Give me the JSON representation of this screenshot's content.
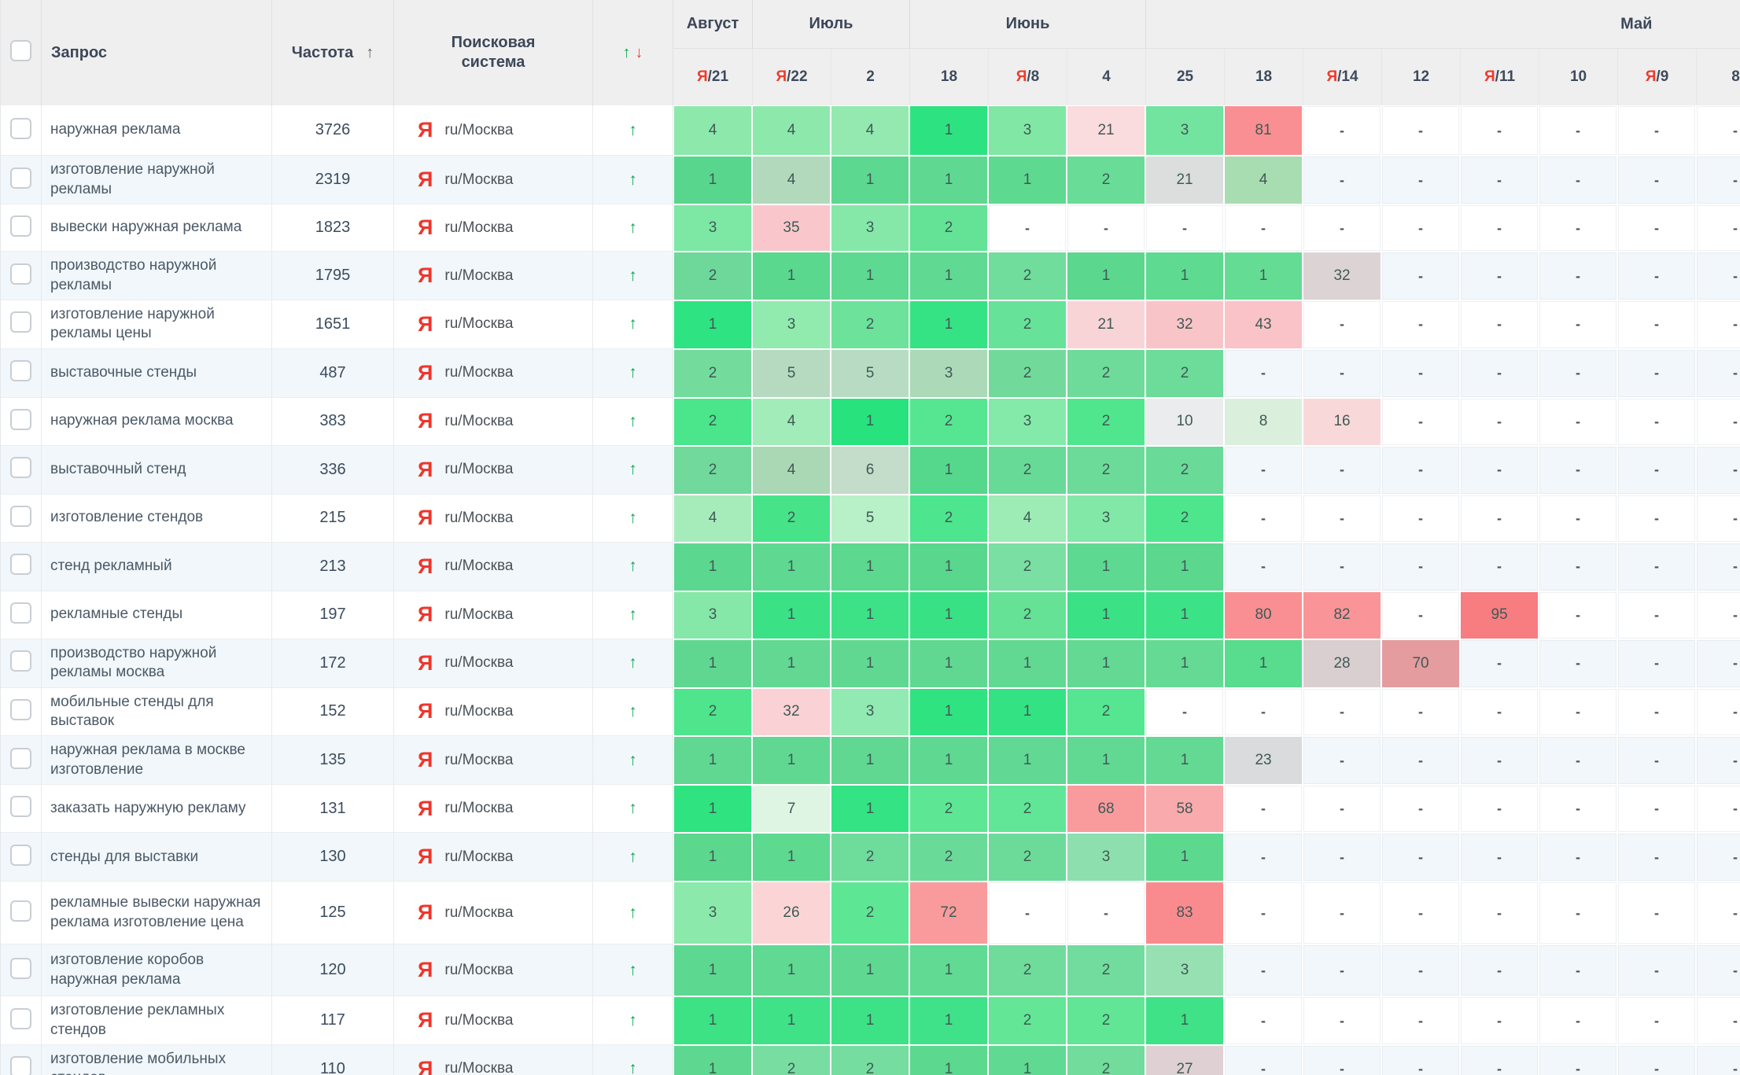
{
  "header": {
    "query": "Запрос",
    "frequency": "Частота",
    "freq_sort_icon": "↑",
    "engine": "Поисковая система",
    "trend_up": "↑",
    "trend_down": "↓",
    "ya_marker": "Я",
    "separator": "/",
    "months": [
      {
        "label": "Август",
        "span": 1
      },
      {
        "label": "Июль",
        "span": 2
      },
      {
        "label": "Июнь",
        "span": 3
      },
      {
        "label": "Май",
        "span": 8
      }
    ],
    "dates": [
      {
        "ya": true,
        "day": "21"
      },
      {
        "ya": true,
        "day": "22"
      },
      {
        "ya": false,
        "day": "2"
      },
      {
        "ya": false,
        "day": "18"
      },
      {
        "ya": true,
        "day": "8"
      },
      {
        "ya": false,
        "day": "4"
      },
      {
        "ya": false,
        "day": "25"
      },
      {
        "ya": false,
        "day": "18"
      },
      {
        "ya": true,
        "day": "14"
      },
      {
        "ya": false,
        "day": "12"
      },
      {
        "ya": true,
        "day": "11"
      },
      {
        "ya": false,
        "day": "10"
      },
      {
        "ya": true,
        "day": "9"
      },
      {
        "ya": false,
        "day": "8"
      }
    ]
  },
  "engine_icon": "Я",
  "colors": {
    "yandex_red": "#f0352b",
    "trend_green": "#0aa94e",
    "trend_red": "#e5483e",
    "row_alt": "#f1f7fa",
    "header_bg": "#efefef"
  },
  "rows": [
    {
      "query": "наружная реклама",
      "frequency": "3726",
      "engine": "ru/Москва",
      "trend": "↑",
      "cells": [
        [
          "4",
          "#8de8ab"
        ],
        [
          "4",
          "#8de8ab"
        ],
        [
          "4",
          "#93e9af"
        ],
        [
          "1",
          "#2de381"
        ],
        [
          "3",
          "#80e7a5"
        ],
        [
          "21",
          "#fadbde"
        ],
        [
          "3",
          "#73e3a0"
        ],
        [
          "81",
          "#f98f92"
        ],
        [
          "-",
          null
        ],
        [
          "-",
          null
        ],
        [
          "-",
          null
        ],
        [
          "-",
          null
        ],
        [
          "-",
          null
        ],
        [
          "-",
          null
        ]
      ]
    },
    {
      "query": "изготовление наружной рекламы",
      "frequency": "2319",
      "engine": "ru/Москва",
      "trend": "↑",
      "cells": [
        [
          "1",
          "#58d68d"
        ],
        [
          "4",
          "#b3d9bc"
        ],
        [
          "1",
          "#5cd890"
        ],
        [
          "1",
          "#5fd992"
        ],
        [
          "1",
          "#5ed990"
        ],
        [
          "2",
          "#69dc97"
        ],
        [
          "21",
          "#dcdedd"
        ],
        [
          "4",
          "#a7ddb0"
        ],
        [
          "-",
          null
        ],
        [
          "-",
          null
        ],
        [
          "-",
          null
        ],
        [
          "-",
          null
        ],
        [
          "-",
          null
        ],
        [
          "-",
          null
        ]
      ]
    },
    {
      "query": "вывески наружная реклама",
      "frequency": "1823",
      "engine": "ru/Москва",
      "trend": "↑",
      "cells": [
        [
          "3",
          "#7de7a4"
        ],
        [
          "35",
          "#f9c7cb"
        ],
        [
          "3",
          "#85e8a9"
        ],
        [
          "2",
          "#64e296"
        ],
        [
          "-",
          null
        ],
        [
          "-",
          null
        ],
        [
          "-",
          null
        ],
        [
          "-",
          null
        ],
        [
          "-",
          null
        ],
        [
          "-",
          null
        ],
        [
          "-",
          null
        ],
        [
          "-",
          null
        ],
        [
          "-",
          null
        ],
        [
          "-",
          null
        ]
      ]
    },
    {
      "query": "производство наружной рекламы",
      "frequency": "1795",
      "engine": "ru/Москва",
      "trend": "↑",
      "cells": [
        [
          "2",
          "#6dd899"
        ],
        [
          "1",
          "#5ad88e"
        ],
        [
          "1",
          "#5ed991"
        ],
        [
          "1",
          "#60d992"
        ],
        [
          "2",
          "#70dd9c"
        ],
        [
          "1",
          "#5bd78e"
        ],
        [
          "1",
          "#5eda91"
        ],
        [
          "1",
          "#65dc94"
        ],
        [
          "32",
          "#dcd3d5"
        ],
        [
          "-",
          null
        ],
        [
          "-",
          null
        ],
        [
          "-",
          null
        ],
        [
          "-",
          null
        ],
        [
          "-",
          null
        ]
      ]
    },
    {
      "query": "изготовление наружной рекламы цены",
      "frequency": "1651",
      "engine": "ru/Москва",
      "trend": "↑",
      "cells": [
        [
          "1",
          "#2ee381"
        ],
        [
          "3",
          "#91eaae"
        ],
        [
          "2",
          "#6de29a"
        ],
        [
          "1",
          "#36e384"
        ],
        [
          "2",
          "#67e299"
        ],
        [
          "21",
          "#f9d4d7"
        ],
        [
          "32",
          "#f9c4c8"
        ],
        [
          "43",
          "#f9c3c7"
        ],
        [
          "-",
          null
        ],
        [
          "-",
          null
        ],
        [
          "-",
          null
        ],
        [
          "-",
          null
        ],
        [
          "-",
          null
        ],
        [
          "-",
          null
        ]
      ]
    },
    {
      "query": "выставочные стенды",
      "frequency": "487",
      "engine": "ru/Москва",
      "trend": "↑",
      "cells": [
        [
          "2",
          "#73dc9d"
        ],
        [
          "5",
          "#b5dac0"
        ],
        [
          "5",
          "#b8dcc3"
        ],
        [
          "3",
          "#acd9b8"
        ],
        [
          "2",
          "#71da9b"
        ],
        [
          "2",
          "#6fdb9a"
        ],
        [
          "2",
          "#6ddb99"
        ],
        [
          "-",
          null
        ],
        [
          "-",
          null
        ],
        [
          "-",
          null
        ],
        [
          "-",
          null
        ],
        [
          "-",
          null
        ],
        [
          "-",
          null
        ],
        [
          "-",
          null
        ]
      ]
    },
    {
      "query": "наружная реклама москва",
      "frequency": "383",
      "engine": "ru/Москва",
      "trend": "↑",
      "cells": [
        [
          "2",
          "#4be58c"
        ],
        [
          "4",
          "#a1ecb8"
        ],
        [
          "1",
          "#28e37d"
        ],
        [
          "2",
          "#56e691"
        ],
        [
          "3",
          "#84eaa9"
        ],
        [
          "2",
          "#50e68e"
        ],
        [
          "10",
          "#ebeced"
        ],
        [
          "8",
          "#daf0dd"
        ],
        [
          "16",
          "#f9d8da"
        ],
        [
          "-",
          null
        ],
        [
          "-",
          null
        ],
        [
          "-",
          null
        ],
        [
          "-",
          null
        ],
        [
          "-",
          null
        ]
      ]
    },
    {
      "query": "выставочный стенд",
      "frequency": "336",
      "engine": "ru/Москва",
      "trend": "↑",
      "cells": [
        [
          "2",
          "#70d99b"
        ],
        [
          "4",
          "#aad8b4"
        ],
        [
          "6",
          "#c4dcca"
        ],
        [
          "1",
          "#55d88c"
        ],
        [
          "2",
          "#68da97"
        ],
        [
          "2",
          "#6cdb99"
        ],
        [
          "2",
          "#69da97"
        ],
        [
          "-",
          null
        ],
        [
          "-",
          null
        ],
        [
          "-",
          null
        ],
        [
          "-",
          null
        ],
        [
          "-",
          null
        ],
        [
          "-",
          null
        ],
        [
          "-",
          null
        ]
      ]
    },
    {
      "query": "изготовление стендов",
      "frequency": "215",
      "engine": "ru/Москва",
      "trend": "↑",
      "cells": [
        [
          "4",
          "#a6ecbb"
        ],
        [
          "2",
          "#47e389"
        ],
        [
          "5",
          "#b8f0c8"
        ],
        [
          "2",
          "#4de58d"
        ],
        [
          "4",
          "#9debb5"
        ],
        [
          "3",
          "#82e8a7"
        ],
        [
          "2",
          "#4de68d"
        ],
        [
          "-",
          null
        ],
        [
          "-",
          null
        ],
        [
          "-",
          null
        ],
        [
          "-",
          null
        ],
        [
          "-",
          null
        ],
        [
          "-",
          null
        ],
        [
          "-",
          null
        ]
      ]
    },
    {
      "query": "стенд рекламный",
      "frequency": "213",
      "engine": "ru/Москва",
      "trend": "↑",
      "cells": [
        [
          "1",
          "#5cd78f"
        ],
        [
          "1",
          "#5fd991"
        ],
        [
          "1",
          "#5cd88f"
        ],
        [
          "1",
          "#58d78d"
        ],
        [
          "2",
          "#7adfa3"
        ],
        [
          "1",
          "#5ed991"
        ],
        [
          "1",
          "#5bd78e"
        ],
        [
          "-",
          null
        ],
        [
          "-",
          null
        ],
        [
          "-",
          null
        ],
        [
          "-",
          null
        ],
        [
          "-",
          null
        ],
        [
          "-",
          null
        ],
        [
          "-",
          null
        ]
      ]
    },
    {
      "query": "рекламные стенды",
      "frequency": "197",
      "engine": "ru/Москва",
      "trend": "↑",
      "cells": [
        [
          "3",
          "#85e7a8"
        ],
        [
          "1",
          "#3be285"
        ],
        [
          "1",
          "#3de286"
        ],
        [
          "1",
          "#38e284"
        ],
        [
          "2",
          "#65e296"
        ],
        [
          "1",
          "#3ae185"
        ],
        [
          "1",
          "#3ce286"
        ],
        [
          "80",
          "#f98f92"
        ],
        [
          "82",
          "#f99598"
        ],
        [
          "-",
          null
        ],
        [
          "95",
          "#f87d81"
        ],
        [
          "-",
          null
        ],
        [
          "-",
          null
        ],
        [
          "-",
          null
        ]
      ]
    },
    {
      "query": "производство наружной рекламы москва",
      "frequency": "172",
      "engine": "ru/Москва",
      "trend": "↑",
      "cells": [
        [
          "1",
          "#60d791"
        ],
        [
          "1",
          "#62d893"
        ],
        [
          "1",
          "#61d892"
        ],
        [
          "1",
          "#60d892"
        ],
        [
          "1",
          "#62d993"
        ],
        [
          "1",
          "#63d993"
        ],
        [
          "1",
          "#64da94"
        ],
        [
          "1",
          "#58dc8e"
        ],
        [
          "28",
          "#d9ced0"
        ],
        [
          "70",
          "#e49c9f"
        ],
        [
          "-",
          null
        ],
        [
          "-",
          null
        ],
        [
          "-",
          null
        ],
        [
          "-",
          null
        ]
      ]
    },
    {
      "query": "мобильные стенды для выставок",
      "frequency": "152",
      "engine": "ru/Москва",
      "trend": "↑",
      "cells": [
        [
          "2",
          "#4fe58d"
        ],
        [
          "32",
          "#fad1d4"
        ],
        [
          "3",
          "#90eab1"
        ],
        [
          "1",
          "#30e381"
        ],
        [
          "1",
          "#33e282"
        ],
        [
          "2",
          "#56e691"
        ],
        [
          "-",
          null
        ],
        [
          "-",
          null
        ],
        [
          "-",
          null
        ],
        [
          "-",
          null
        ],
        [
          "-",
          null
        ],
        [
          "-",
          null
        ],
        [
          "-",
          null
        ],
        [
          "-",
          null
        ]
      ]
    },
    {
      "query": "наружная реклама в москве изготовление",
      "frequency": "135",
      "engine": "ru/Москва",
      "trend": "↑",
      "cells": [
        [
          "1",
          "#60d892"
        ],
        [
          "1",
          "#61d892"
        ],
        [
          "1",
          "#60d891"
        ],
        [
          "1",
          "#5fd891"
        ],
        [
          "1",
          "#61d893"
        ],
        [
          "1",
          "#62d993"
        ],
        [
          "1",
          "#63d994"
        ],
        [
          "23",
          "#dadbdc"
        ],
        [
          "-",
          null
        ],
        [
          "-",
          null
        ],
        [
          "-",
          null
        ],
        [
          "-",
          null
        ],
        [
          "-",
          null
        ],
        [
          "-",
          null
        ]
      ]
    },
    {
      "query": "заказать наружную рекламу",
      "frequency": "131",
      "engine": "ru/Москва",
      "trend": "↑",
      "cells": [
        [
          "1",
          "#2ee380"
        ],
        [
          "7",
          "#dff5e3"
        ],
        [
          "1",
          "#34e383"
        ],
        [
          "2",
          "#5de794"
        ],
        [
          "2",
          "#60e696"
        ],
        [
          "68",
          "#f99b9d"
        ],
        [
          "58",
          "#f9aaad"
        ],
        [
          "-",
          null
        ],
        [
          "-",
          null
        ],
        [
          "-",
          null
        ],
        [
          "-",
          null
        ],
        [
          "-",
          null
        ],
        [
          "-",
          null
        ],
        [
          "-",
          null
        ]
      ]
    },
    {
      "query": "стенды для выставки",
      "frequency": "130",
      "engine": "ru/Москва",
      "trend": "↑",
      "cells": [
        [
          "1",
          "#5bd78e"
        ],
        [
          "1",
          "#5ed990"
        ],
        [
          "2",
          "#6edc9b"
        ],
        [
          "2",
          "#6ada98"
        ],
        [
          "2",
          "#6cdb99"
        ],
        [
          "3",
          "#8edfae"
        ],
        [
          "1",
          "#5cd98f"
        ],
        [
          "-",
          null
        ],
        [
          "-",
          null
        ],
        [
          "-",
          null
        ],
        [
          "-",
          null
        ],
        [
          "-",
          null
        ],
        [
          "-",
          null
        ],
        [
          "-",
          null
        ]
      ]
    },
    {
      "query": "рекламные вывески наружная реклама изготовление цена",
      "frequency": "125",
      "engine": "ru/Москва",
      "trend": "↑",
      "cells": [
        [
          "3",
          "#8be9ab"
        ],
        [
          "26",
          "#fbd5d6"
        ],
        [
          "2",
          "#5de794"
        ],
        [
          "72",
          "#f99b9d"
        ],
        [
          "-",
          null
        ],
        [
          "-",
          null
        ],
        [
          "83",
          "#f98b8e"
        ],
        [
          "-",
          null
        ],
        [
          "-",
          null
        ],
        [
          "-",
          null
        ],
        [
          "-",
          null
        ],
        [
          "-",
          null
        ],
        [
          "-",
          null
        ],
        [
          "-",
          null
        ]
      ]
    },
    {
      "query": "изготовление коробов наружная реклама",
      "frequency": "120",
      "engine": "ru/Москва",
      "trend": "↑",
      "cells": [
        [
          "1",
          "#5dd890"
        ],
        [
          "1",
          "#60d992"
        ],
        [
          "1",
          "#5fd991"
        ],
        [
          "1",
          "#61da93"
        ],
        [
          "2",
          "#6fdc9b"
        ],
        [
          "2",
          "#71dc9d"
        ],
        [
          "3",
          "#96e0b2"
        ],
        [
          "-",
          null
        ],
        [
          "-",
          null
        ],
        [
          "-",
          null
        ],
        [
          "-",
          null
        ],
        [
          "-",
          null
        ],
        [
          "-",
          null
        ],
        [
          "-",
          null
        ]
      ]
    },
    {
      "query": "изготовление рекламных стендов",
      "frequency": "117",
      "engine": "ru/Москва",
      "trend": "↑",
      "cells": [
        [
          "1",
          "#3de285"
        ],
        [
          "1",
          "#3fe286"
        ],
        [
          "1",
          "#3ee286"
        ],
        [
          "1",
          "#3fe288"
        ],
        [
          "2",
          "#63e696"
        ],
        [
          "2",
          "#61e696"
        ],
        [
          "1",
          "#3fe287"
        ],
        [
          "-",
          null
        ],
        [
          "-",
          null
        ],
        [
          "-",
          null
        ],
        [
          "-",
          null
        ],
        [
          "-",
          null
        ],
        [
          "-",
          null
        ],
        [
          "-",
          null
        ]
      ]
    },
    {
      "query": "изготовление мобильных стендов",
      "frequency": "110",
      "engine": "ru/Москва",
      "trend": "↑",
      "cells": [
        [
          "1",
          "#5ed890"
        ],
        [
          "2",
          "#78dda1"
        ],
        [
          "2",
          "#75dda0"
        ],
        [
          "1",
          "#5cd88f"
        ],
        [
          "1",
          "#60d992"
        ],
        [
          "2",
          "#71dc9c"
        ],
        [
          "27",
          "#dfd1d3"
        ],
        [
          "-",
          null
        ],
        [
          "-",
          null
        ],
        [
          "-",
          null
        ],
        [
          "-",
          null
        ],
        [
          "-",
          null
        ],
        [
          "-",
          null
        ],
        [
          "-",
          null
        ]
      ]
    }
  ]
}
